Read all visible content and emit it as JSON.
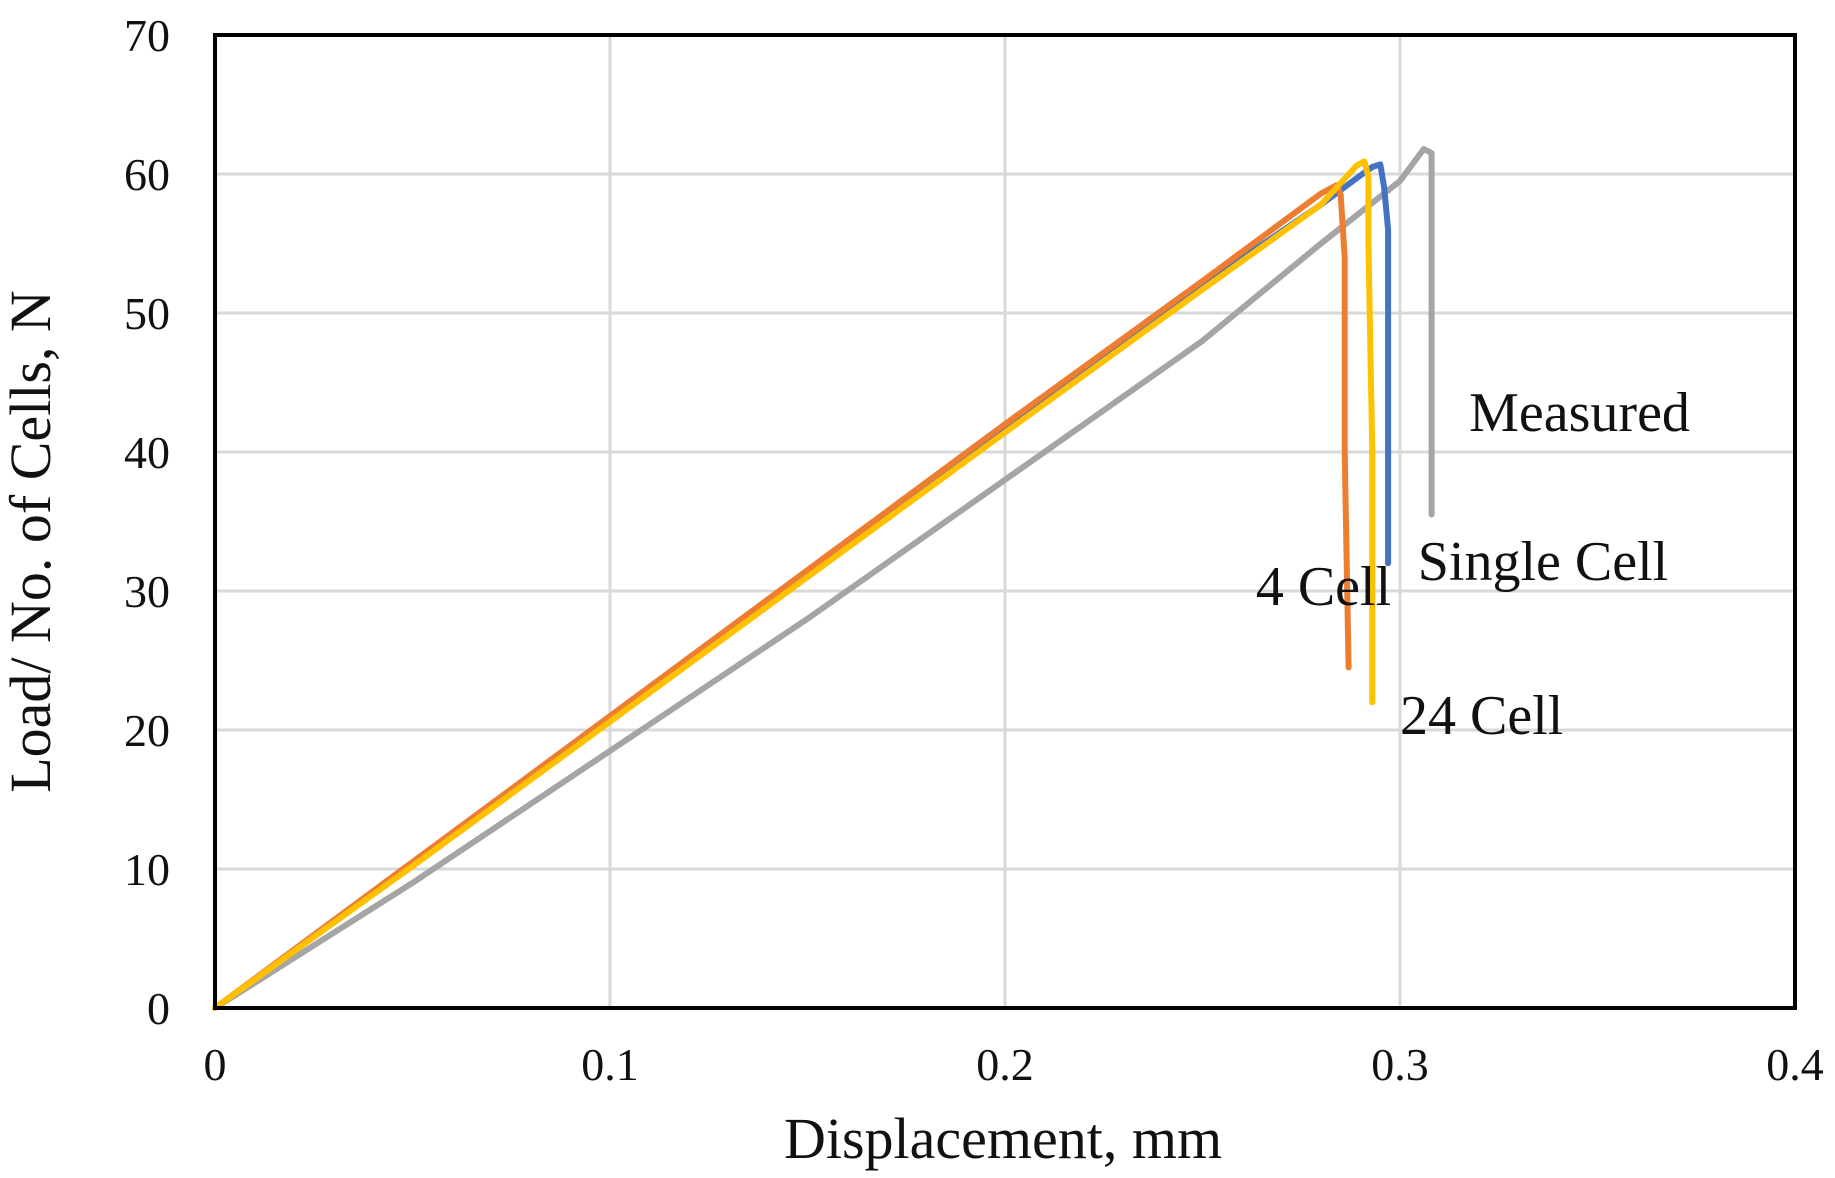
{
  "chart_data": {
    "type": "line",
    "title": "",
    "xlabel": "Displacement, mm",
    "ylabel": "Load/ No. of Cells, N",
    "xlim": [
      0,
      0.4
    ],
    "ylim": [
      0,
      70
    ],
    "xticks": [
      0,
      0.1,
      0.2,
      0.3,
      0.4
    ],
    "xtick_labels": [
      "0",
      "0.1",
      "0.2",
      "0.3",
      "0.4"
    ],
    "yticks": [
      0,
      10,
      20,
      30,
      40,
      50,
      60,
      70
    ],
    "ytick_labels": [
      "0",
      "10",
      "20",
      "30",
      "40",
      "50",
      "60",
      "70"
    ],
    "grid": true,
    "legend": "inline labels",
    "series": [
      {
        "name": "Measured",
        "label": "Measured",
        "color": "#a5a5a5",
        "x": [
          0,
          0.05,
          0.1,
          0.15,
          0.2,
          0.25,
          0.28,
          0.3,
          0.306,
          0.308,
          0.308,
          0.308
        ],
        "y": [
          0,
          9,
          18.5,
          28,
          38,
          48,
          55,
          59.5,
          61.8,
          61.5,
          56,
          35.5
        ],
        "label_at": [
          0.3175,
          41.5
        ]
      },
      {
        "name": "Single Cell",
        "label": "Single Cell",
        "color": "#4472c4",
        "x": [
          0,
          0.05,
          0.1,
          0.15,
          0.2,
          0.25,
          0.28,
          0.29,
          0.293,
          0.295,
          0.296,
          0.297,
          0.297,
          0.297
        ],
        "y": [
          0,
          10.3,
          20.8,
          31.3,
          41.7,
          52,
          57.8,
          59.9,
          60.5,
          60.7,
          59,
          56,
          45,
          32
        ],
        "label_at": [
          0.3045,
          30.8
        ]
      },
      {
        "name": "4 Cell",
        "label": "4 Cell",
        "color": "#ed7d31",
        "x": [
          0,
          0.05,
          0.1,
          0.15,
          0.2,
          0.25,
          0.28,
          0.284,
          0.285,
          0.286,
          0.286,
          0.287
        ],
        "y": [
          0,
          10.5,
          21,
          31.5,
          42,
          52.3,
          58.6,
          59.2,
          58.5,
          54,
          40,
          24.5
        ],
        "label_at": [
          0.2635,
          29
        ]
      },
      {
        "name": "24 Cell",
        "label": "24 Cell",
        "color": "#ffc000",
        "x": [
          0,
          0.05,
          0.1,
          0.15,
          0.2,
          0.25,
          0.28,
          0.289,
          0.291,
          0.292,
          0.292,
          0.293,
          0.293
        ],
        "y": [
          0,
          10.2,
          20.6,
          31,
          41.4,
          51.7,
          57.8,
          60.6,
          60.9,
          59.8,
          55,
          40,
          22
        ],
        "label_at": [
          0.3,
          19.7
        ]
      }
    ]
  }
}
